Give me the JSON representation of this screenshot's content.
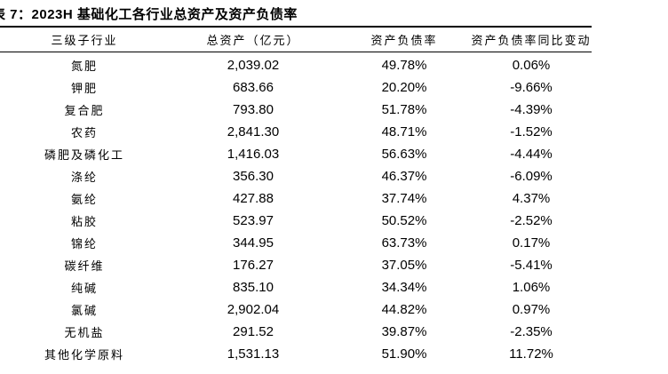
{
  "title": "表 7：2023H 基础化工各行业总资产及资产负债率",
  "table": {
    "headers": [
      "三级子行业",
      "总资产（亿元）",
      "资产负债率",
      "资产负债率同比变动"
    ],
    "rows": [
      [
        "氮肥",
        "2,039.02",
        "49.78%",
        "0.06%"
      ],
      [
        "钾肥",
        "683.66",
        "20.20%",
        "-9.66%"
      ],
      [
        "复合肥",
        "793.80",
        "51.78%",
        "-4.39%"
      ],
      [
        "农药",
        "2,841.30",
        "48.71%",
        "-1.52%"
      ],
      [
        "磷肥及磷化工",
        "1,416.03",
        "56.63%",
        "-4.44%"
      ],
      [
        "涤纶",
        "356.30",
        "46.37%",
        "-6.09%"
      ],
      [
        "氨纶",
        "427.88",
        "37.74%",
        "4.37%"
      ],
      [
        "粘胶",
        "523.97",
        "50.52%",
        "-2.52%"
      ],
      [
        "锦纶",
        "344.95",
        "63.73%",
        "0.17%"
      ],
      [
        "碳纤维",
        "176.27",
        "37.05%",
        "-5.41%"
      ],
      [
        "纯碱",
        "835.10",
        "34.34%",
        "1.06%"
      ],
      [
        "氯碱",
        "2,902.04",
        "44.82%",
        "0.97%"
      ],
      [
        "无机盐",
        "291.52",
        "39.87%",
        "-2.35%"
      ],
      [
        "其他化学原料",
        "1,531.13",
        "51.90%",
        "11.72%"
      ]
    ]
  }
}
